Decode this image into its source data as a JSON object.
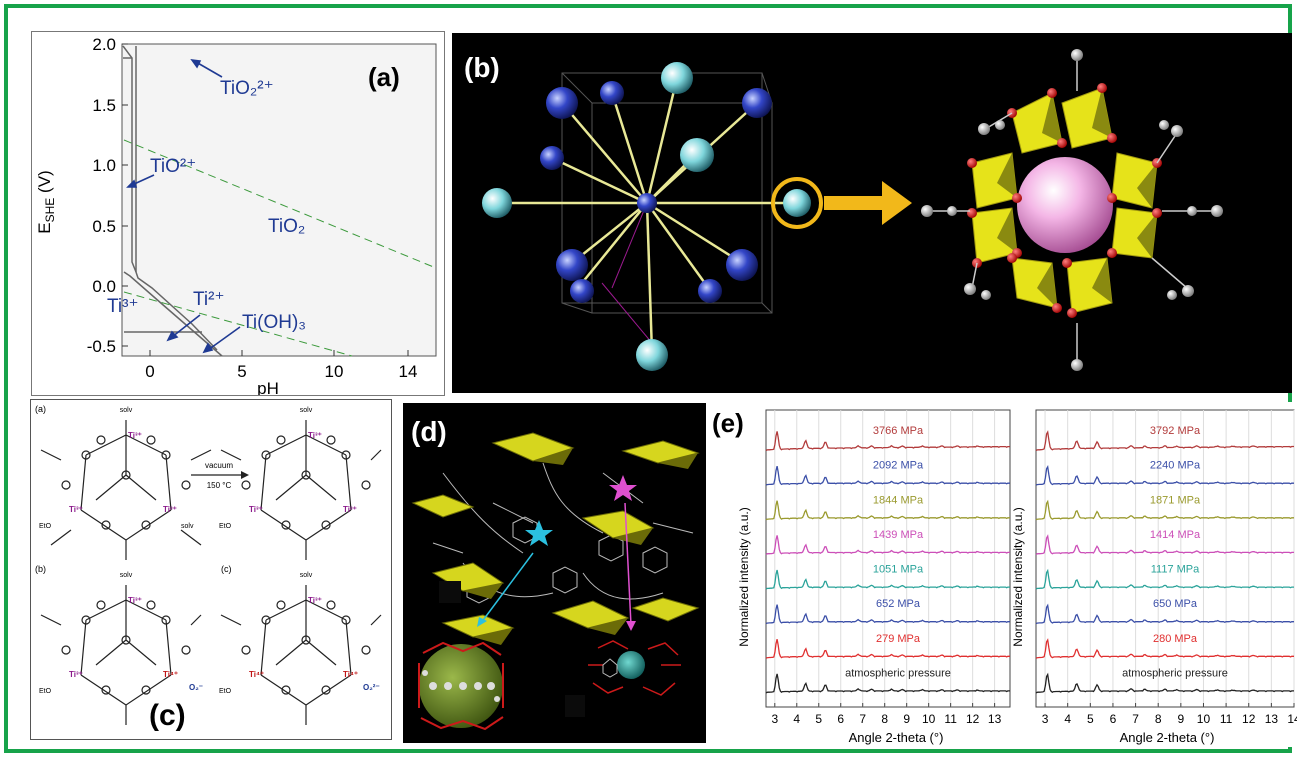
{
  "panels": {
    "a": {
      "label": "(a)",
      "xlabel": "pH",
      "ylabel_main": "E",
      "ylabel_sub": "SHE",
      "ylabel_unit": " (V)",
      "x_ticks": [
        "0",
        "5",
        "10",
        "14"
      ],
      "y_ticks": [
        "2.0",
        "1.5",
        "1.0",
        "0.5",
        "0.0",
        "-0.5"
      ],
      "species": {
        "tio2_2plus": "TiO₂²⁺",
        "tio_2plus": "TiO²⁺",
        "tio2": "TiO₂",
        "ti3plus": "Ti³⁺",
        "ti2plus": "Ti²⁺",
        "tioh3": "Ti(OH)₃"
      }
    },
    "b": {
      "label": "(b)"
    },
    "c": {
      "label": "(c)",
      "sub_a": "(a)",
      "sub_b": "(b)",
      "sub_c": "(c)",
      "solv": "solv",
      "eto": "EtO",
      "ti3": "Ti³⁺",
      "ti4": "Ti⁴⁺",
      "o2_minus": "O₂⁻",
      "o2_2minus": "O₂²⁻",
      "arrow_top": "vacuum",
      "arrow_bottom": "150 °C"
    },
    "d": {
      "label": "(d)"
    },
    "e": {
      "label": "(e)",
      "ylabel": "Normalized intensity (a.u.)",
      "xlabel": "Angle 2-theta (°)",
      "left_ticks": [
        "3",
        "4",
        "5",
        "6",
        "7",
        "8",
        "9",
        "10",
        "11",
        "12",
        "13"
      ],
      "right_ticks": [
        "3",
        "4",
        "5",
        "6",
        "7",
        "8",
        "9",
        "10",
        "11",
        "12",
        "13",
        "14"
      ],
      "left_pressures": [
        "3766 MPa",
        "2092 MPa",
        "1844 MPa",
        "1439 MPa",
        "1051 MPa",
        "652 MPa",
        "279 MPa",
        "atmospheric pressure"
      ],
      "right_pressures": [
        "3792 MPa",
        "2240 MPa",
        "1871 MPa",
        "1414 MPa",
        "1117 MPa",
        "650 MPa",
        "280 MPa",
        "atmospheric pressure"
      ]
    }
  },
  "colors": {
    "frame": "#17a34a",
    "species_text": "#1f3a93",
    "pressure_colors": [
      "#b23b3b",
      "#3b4fa8",
      "#9a9a2e",
      "#cc4fb8",
      "#2aa39a",
      "#3b4fa8",
      "#e03030",
      "#222222"
    ]
  }
}
